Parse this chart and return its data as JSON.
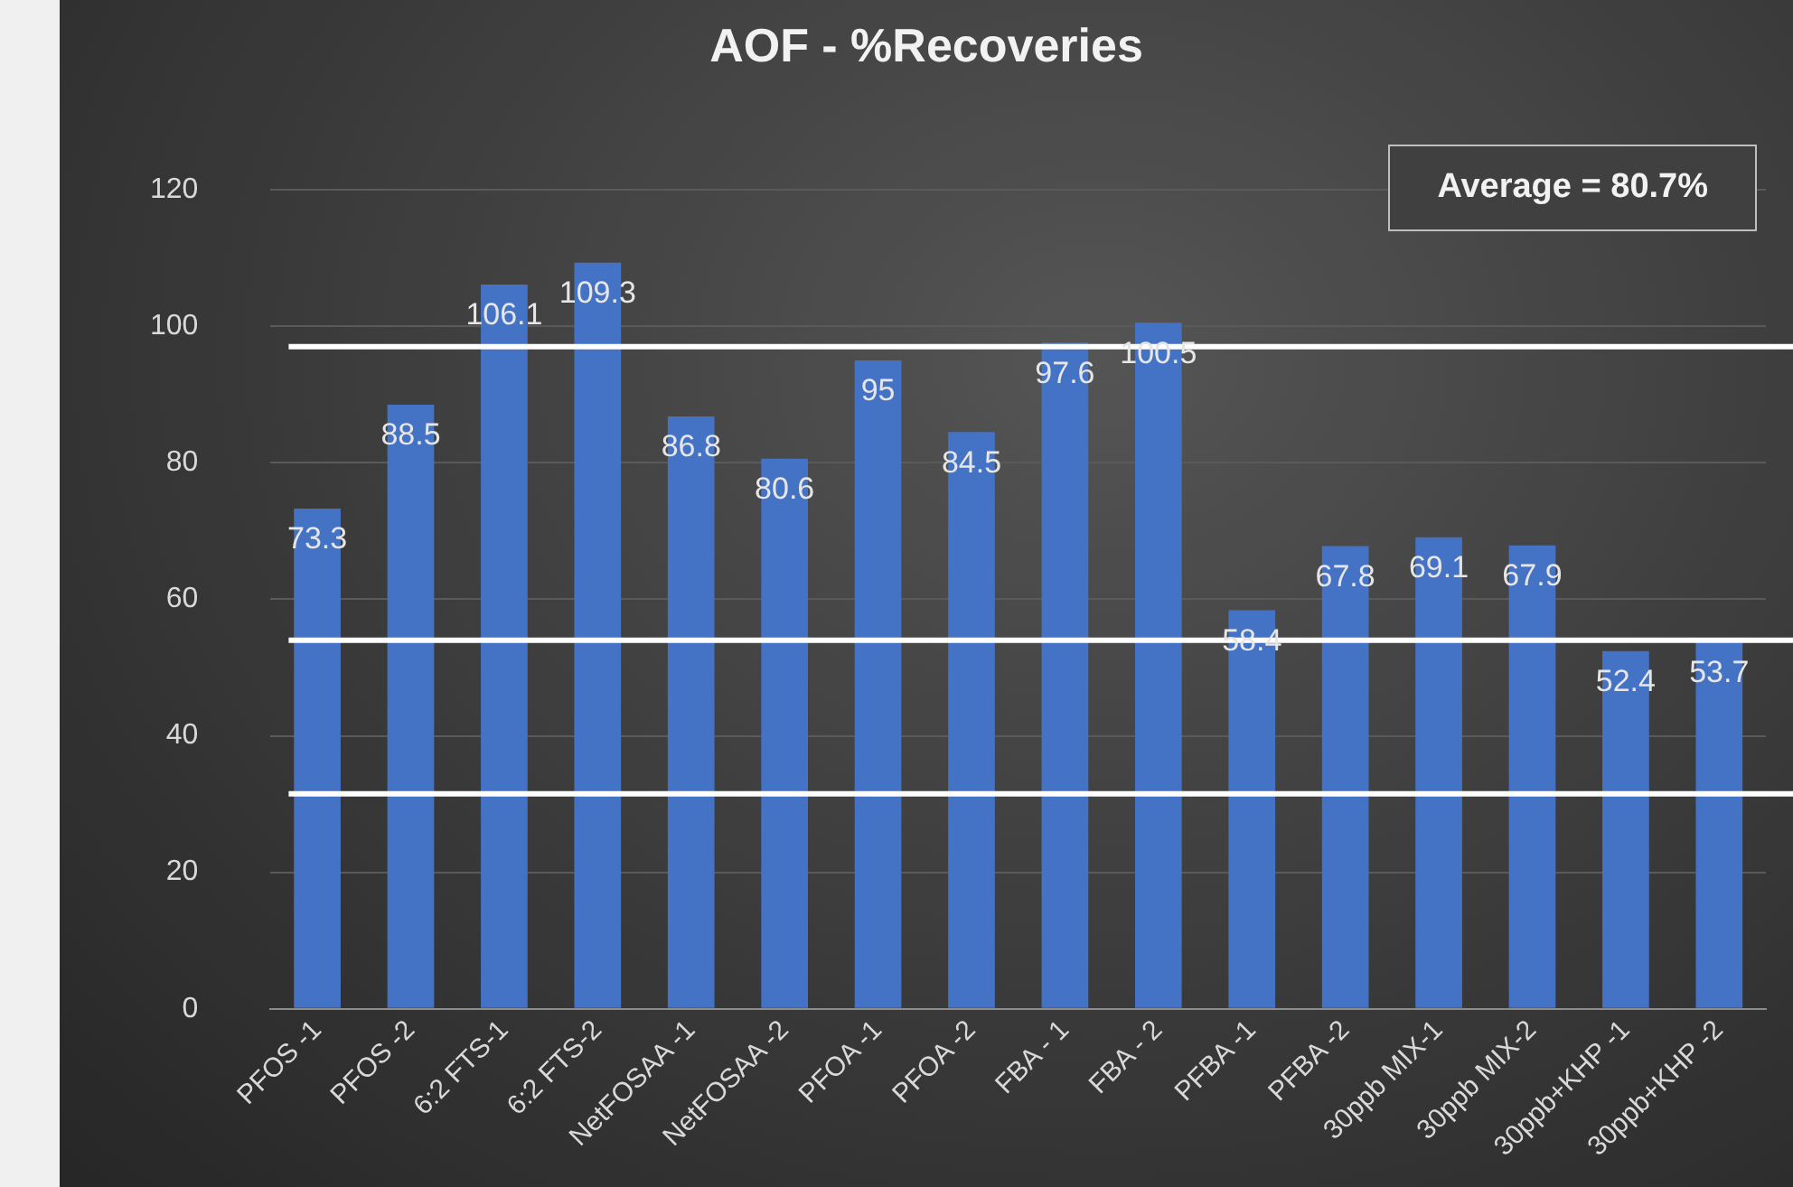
{
  "chart_data": {
    "type": "bar",
    "title": "AOF - %Recoveries",
    "categories": [
      "PFOS -1",
      "PFOS -2",
      "6:2 FTS-1",
      "6:2 FTS-2",
      "NetFOSAA -1",
      "NetFOSAA -2",
      "PFOA -1",
      "PFOA -2",
      "FBA - 1",
      "FBA - 2",
      "PFBA -1",
      "PFBA -2",
      "30ppb MIX-1",
      "30ppb MIX-2",
      "30ppb+KHP -1",
      "30ppb+KHP -2"
    ],
    "values": [
      73.3,
      88.5,
      106.1,
      109.3,
      86.8,
      80.6,
      95,
      84.5,
      97.6,
      100.5,
      58.4,
      67.8,
      69.1,
      67.9,
      52.4,
      53.7
    ],
    "color": "#4472c4",
    "ylim": [
      0,
      120
    ],
    "yticks": [
      0,
      20,
      40,
      60,
      80,
      100,
      120
    ],
    "grid": "y",
    "legend": false,
    "data_labels": true,
    "ref_lines": [
      {
        "axis": "y",
        "value": 97,
        "color": "#ffffff"
      },
      {
        "axis": "y",
        "value": 54,
        "color": "#ffffff"
      },
      {
        "axis": "y",
        "value": 31.5,
        "color": "#ffffff"
      }
    ],
    "annotations": [
      "Average = 80.7%"
    ]
  }
}
